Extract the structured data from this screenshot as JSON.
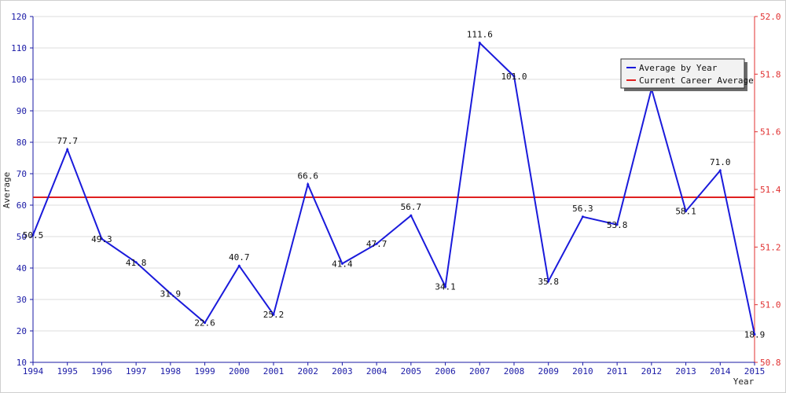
{
  "chart_data": {
    "type": "line",
    "xlabel": "Year",
    "ylabel": "Average",
    "categories": [
      "1994",
      "1995",
      "1996",
      "1997",
      "1998",
      "1999",
      "2000",
      "2001",
      "2002",
      "2003",
      "2004",
      "2005",
      "2006",
      "2007",
      "2008",
      "2009",
      "2010",
      "2011",
      "2012",
      "2013",
      "2014",
      "2015"
    ],
    "series": [
      {
        "name": "Average by Year",
        "color": "#1a1adb",
        "values": [
          50.5,
          77.7,
          49.3,
          41.8,
          31.9,
          22.6,
          40.7,
          25.2,
          66.6,
          41.4,
          47.7,
          56.7,
          34.1,
          111.6,
          101.0,
          35.8,
          56.3,
          53.8,
          97.0,
          58.1,
          71.0,
          18.9
        ],
        "labels": [
          "50.5",
          "77.7",
          "49.3",
          "41.8",
          "31.9",
          "22.6",
          "40.7",
          "25.2",
          "66.6",
          "41.4",
          "47.7",
          "56.7",
          "34.1",
          "111.6",
          "101.0",
          "35.8",
          "56.3",
          "53.8",
          "",
          "58.1",
          "71.0",
          "18.9"
        ]
      },
      {
        "name": "Current Career Average",
        "color": "#e02020",
        "value": 62.5
      }
    ],
    "ylim": [
      10,
      120
    ],
    "yticks": [
      10,
      20,
      30,
      40,
      50,
      60,
      70,
      80,
      90,
      100,
      110,
      120
    ],
    "y2lim": [
      50.8,
      52.0
    ],
    "y2ticks": [
      "50.8",
      "51.0",
      "51.2",
      "51.4",
      "51.6",
      "51.8",
      "52.0"
    ],
    "legend_position": "top-right",
    "grid": true
  }
}
